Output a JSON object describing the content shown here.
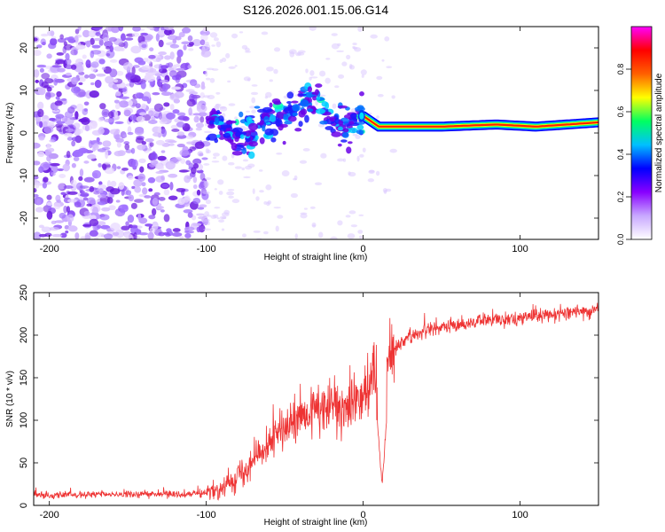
{
  "title": "S126.2026.001.15.06.G14",
  "chart_data": [
    {
      "type": "heatmap",
      "name": "spectrogram",
      "xlabel": "Height of straight line (km)",
      "ylabel": "Frequency (Hz)",
      "xlim": [
        -210,
        150
      ],
      "ylim": [
        -25,
        25
      ],
      "xticks": [
        -200,
        -100,
        0,
        100
      ],
      "yticks": [
        -20,
        -10,
        0,
        10,
        20
      ],
      "noise_region_km": [
        -210,
        -100
      ],
      "ridge": [
        {
          "x": -100,
          "f": 2
        },
        {
          "x": -90,
          "f": 1
        },
        {
          "x": -80,
          "f": -1
        },
        {
          "x": -70,
          "f": 0
        },
        {
          "x": -60,
          "f": 3
        },
        {
          "x": -50,
          "f": 5
        },
        {
          "x": -40,
          "f": 6
        },
        {
          "x": -30,
          "f": 8
        },
        {
          "x": -20,
          "f": 3
        },
        {
          "x": -10,
          "f": 1.5
        },
        {
          "x": 0,
          "f": 4
        },
        {
          "x": 10,
          "f": 1.5
        },
        {
          "x": 50,
          "f": 1.5
        },
        {
          "x": 85,
          "f": 2
        },
        {
          "x": 110,
          "f": 1.5
        },
        {
          "x": 150,
          "f": 2.5
        }
      ]
    },
    {
      "type": "line",
      "name": "snr",
      "xlabel": "Height of straight line (km)",
      "ylabel": "SNR (10 * v/v)",
      "xlim": [
        -210,
        150
      ],
      "ylim": [
        0,
        250
      ],
      "xticks": [
        -200,
        -100,
        0,
        100
      ],
      "yticks": [
        0,
        50,
        100,
        150,
        200,
        250
      ],
      "series": [
        {
          "name": "SNR",
          "color": "#ee3333",
          "trend": [
            {
              "x": -210,
              "y": 12
            },
            {
              "x": -100,
              "y": 14
            },
            {
              "x": -90,
              "y": 20
            },
            {
              "x": -80,
              "y": 35
            },
            {
              "x": -70,
              "y": 55
            },
            {
              "x": -60,
              "y": 75
            },
            {
              "x": -50,
              "y": 90
            },
            {
              "x": -40,
              "y": 100
            },
            {
              "x": -30,
              "y": 110
            },
            {
              "x": -20,
              "y": 115
            },
            {
              "x": -10,
              "y": 120
            },
            {
              "x": 0,
              "y": 135
            },
            {
              "x": 10,
              "y": 155
            },
            {
              "x": 20,
              "y": 185
            },
            {
              "x": 30,
              "y": 200
            },
            {
              "x": 40,
              "y": 205
            },
            {
              "x": 60,
              "y": 212
            },
            {
              "x": 80,
              "y": 218
            },
            {
              "x": 100,
              "y": 220
            },
            {
              "x": 120,
              "y": 225
            },
            {
              "x": 150,
              "y": 230
            }
          ],
          "dip": {
            "x": 12,
            "y": 20
          }
        }
      ]
    }
  ],
  "colorbar": {
    "label": "Normalized spectral amplitude",
    "range": [
      0,
      1
    ],
    "ticks": [
      "0.0",
      "0.2",
      "0.4",
      "0.6",
      "0.8"
    ],
    "stops": [
      "#ffffff",
      "#c8a8ff",
      "#8800ff",
      "#0000ff",
      "#00c0ff",
      "#00ff60",
      "#ffff00",
      "#ff6000",
      "#ff0000",
      "#ff00ff"
    ]
  }
}
